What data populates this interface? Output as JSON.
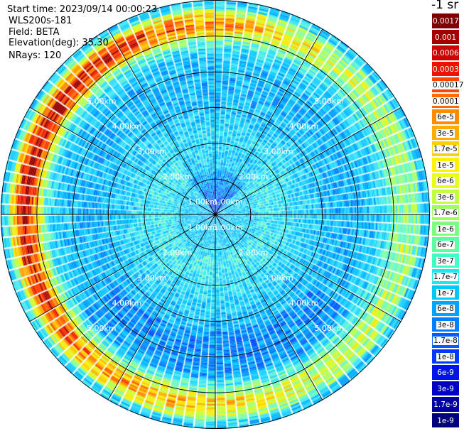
{
  "info": {
    "start_time": "Start time: 2023/09/14 00:00:23",
    "instrument": "WLS200s-181",
    "field": "Field: BETA",
    "elevation": "Elevation(deg): 35.30",
    "nrays": "NRays: 120"
  },
  "unit_label": "-1 sr",
  "chart_data": {
    "type": "heatmap",
    "projection": "polar",
    "n_rays": 120,
    "range_max_km": 6,
    "range_rings_km": [
      1,
      2,
      3,
      4,
      5,
      6
    ],
    "ring_labels": [
      "1.00km",
      "2.00km",
      "3.00km",
      "4.00km",
      "5.00km"
    ],
    "spokes_deg": [
      0,
      30,
      60,
      90,
      120,
      150,
      180,
      210,
      240,
      270,
      300,
      330
    ],
    "colorbar": {
      "labels": [
        "0.0017",
        "0.001",
        "0.0006",
        "0.0003",
        "0.00017",
        "0.0001",
        "6e-5",
        "3e-5",
        "1.7e-5",
        "1e-5",
        "6e-6",
        "3e-6",
        "1.7e-6",
        "1e-6",
        "6e-7",
        "3e-7",
        "1.7e-7",
        "1e-7",
        "6e-8",
        "3e-8",
        "1.7e-8",
        "1e-8",
        "6e-9",
        "3e-9",
        "1.7e-9",
        "1e-9"
      ],
      "colors": [
        "#7f0000",
        "#a50000",
        "#cc0000",
        "#ee1100",
        "#ff4400",
        "#ff6a00",
        "#ff8c00",
        "#ffae00",
        "#ffd000",
        "#fff200",
        "#e8ff1c",
        "#c2ff3e",
        "#9cff60",
        "#7cff7c",
        "#5cffa0",
        "#3cffc4",
        "#1ce8e8",
        "#00c8ff",
        "#00a4ff",
        "#0080ff",
        "#005cff",
        "#0038ff",
        "#0014e8",
        "#0000c4",
        "#0000a0",
        "#00007c"
      ],
      "dark_text_indices": [
        0,
        1,
        2,
        3,
        22,
        23,
        24,
        25
      ]
    }
  }
}
